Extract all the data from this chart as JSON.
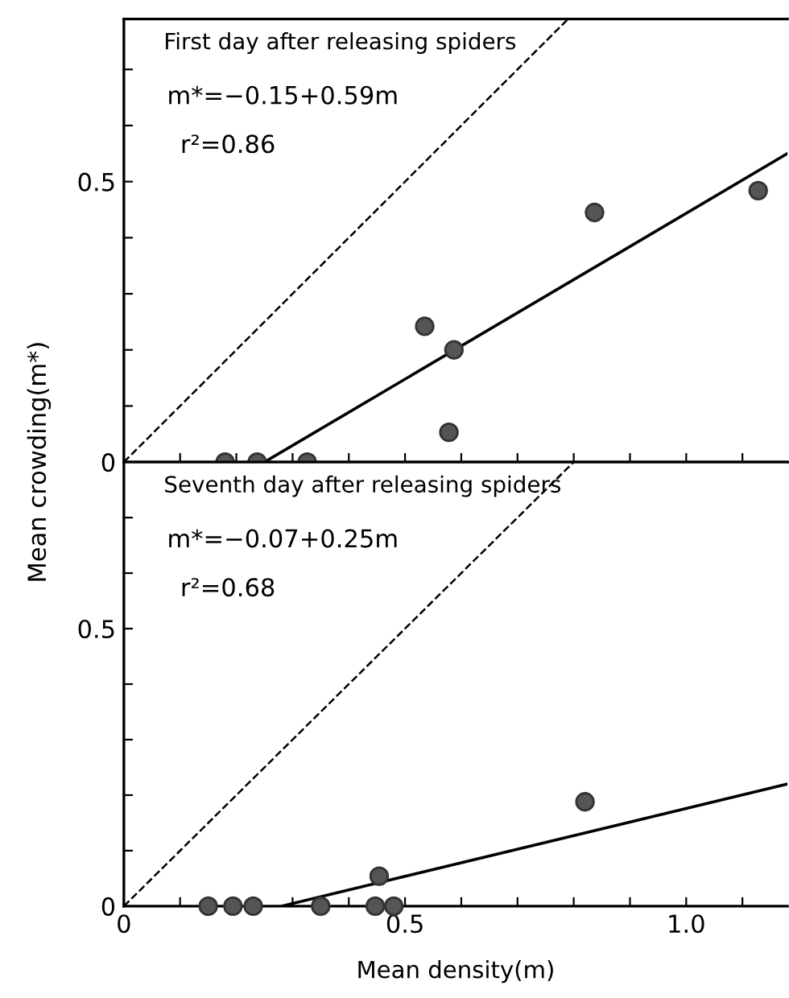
{
  "chart_data": [
    {
      "type": "scatter",
      "title": "First day after releasing spiders",
      "ylabel": "Mean crowding(m*)",
      "annotations": [
        "m*=−0.15+0.59m",
        "r²=0.86"
      ],
      "tick_labels": "y",
      "xlim": [
        0,
        1.18
      ],
      "ylim": [
        0,
        0.79
      ],
      "xticks": [
        0,
        0.1,
        0.2,
        0.3,
        0.4,
        0.5,
        0.6,
        0.7,
        0.8,
        0.9,
        1,
        1.1
      ],
      "yticks": [
        0,
        {
          "value": 0.1,
          "label": null
        },
        {
          "value": 0.2,
          "label": null
        },
        {
          "value": 0.3,
          "label": null
        },
        {
          "value": 0.4,
          "label": null
        },
        0.5,
        {
          "value": 0.6,
          "label": null
        },
        {
          "value": 0.7,
          "label": null
        }
      ],
      "series": [
        {
          "marker": "circle",
          "color": "#555555",
          "x": [
            0.18,
            0.237,
            0.326,
            0.535,
            0.587,
            0.578,
            0.837,
            1.128
          ],
          "values": [
            0,
            0,
            0,
            0.242,
            0.2,
            0.053,
            0.445,
            0.484
          ]
        },
        {
          "type": "line",
          "marker": "none",
          "color": "#000000",
          "line_style": "solid",
          "x": [
            0.25,
            1.18
          ],
          "values": [
            0,
            0.55
          ]
        },
        {
          "type": "line",
          "marker": "none",
          "color": "#000000",
          "line_style": "dashed",
          "x": [
            0,
            0.79
          ],
          "values": [
            0,
            0.79
          ]
        }
      ]
    },
    {
      "type": "scatter",
      "title": "Seventh day after releasing spiders",
      "xlabel": "Mean density(m)",
      "annotations": [
        "m*=−0.07+0.25m",
        "r²=0.68"
      ],
      "xlim": [
        0,
        1.18
      ],
      "ylim": [
        0,
        0.8
      ],
      "xticks": [
        0,
        {
          "value": 0.1,
          "label": null
        },
        {
          "value": 0.2,
          "label": null
        },
        {
          "value": 0.3,
          "label": null
        },
        {
          "value": 0.4,
          "label": null
        },
        0.5,
        {
          "value": 0.6,
          "label": null
        },
        {
          "value": 0.7,
          "label": null
        },
        {
          "value": 0.8,
          "label": null
        },
        {
          "value": 0.9,
          "label": null
        },
        {
          "value": 1,
          "label": "1.0"
        },
        {
          "value": 1.1,
          "label": null
        }
      ],
      "yticks": [
        0,
        {
          "value": 0.1,
          "label": null
        },
        {
          "value": 0.2,
          "label": null
        },
        {
          "value": 0.3,
          "label": null
        },
        {
          "value": 0.4,
          "label": null
        },
        0.5,
        {
          "value": 0.6,
          "label": null
        },
        {
          "value": 0.7,
          "label": null
        }
      ],
      "series": [
        {
          "marker": "circle",
          "color": "#555555",
          "x": [
            0.15,
            0.194,
            0.23,
            0.35,
            0.447,
            0.48,
            0.454,
            0.82
          ],
          "values": [
            0,
            0,
            0,
            0,
            0,
            0,
            0.054,
            0.188
          ]
        },
        {
          "type": "line",
          "marker": "none",
          "color": "#000000",
          "line_style": "solid",
          "x": [
            0.28,
            1.18
          ],
          "values": [
            0,
            0.22
          ]
        },
        {
          "type": "line",
          "marker": "none",
          "color": "#000000",
          "line_style": "dashed",
          "x": [
            0,
            0.8
          ],
          "values": [
            0,
            0.8
          ]
        }
      ]
    }
  ]
}
